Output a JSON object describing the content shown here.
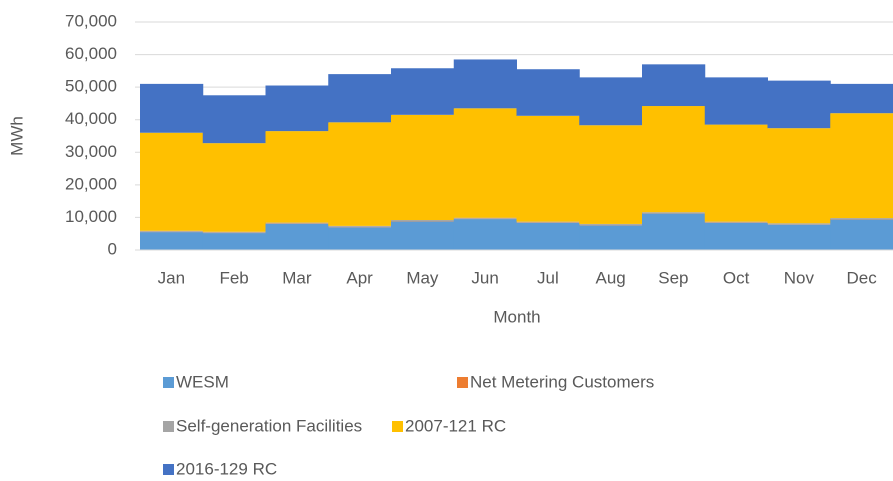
{
  "chart_data": {
    "type": "stacked_area",
    "y_label": "MWh",
    "x_label": "Month",
    "categories": [
      "Jan",
      "Feb",
      "Mar",
      "Apr",
      "May",
      "Jun",
      "Jul",
      "Aug",
      "Sep",
      "Oct",
      "Nov",
      "Dec"
    ],
    "series": [
      {
        "name": "WESM",
        "color": "#5b9bd5",
        "values": [
          5500,
          5200,
          8000,
          7000,
          8800,
          9500,
          8300,
          7600,
          11200,
          8300,
          7800,
          9400
        ]
      },
      {
        "name": "Net Metering Customers",
        "color": "#ed7d31",
        "values": [
          100,
          100,
          100,
          100,
          100,
          100,
          100,
          100,
          100,
          100,
          100,
          100
        ]
      },
      {
        "name": "Self-generation Facilities",
        "color": "#a5a5a5",
        "values": [
          300,
          300,
          300,
          300,
          300,
          300,
          300,
          300,
          300,
          300,
          300,
          300
        ]
      },
      {
        "name": "2007-121 RC",
        "color": "#ffc000",
        "values": [
          30100,
          27200,
          28100,
          31800,
          32300,
          33600,
          32500,
          30300,
          32600,
          29800,
          29200,
          32200
        ]
      },
      {
        "name": "2016-129 RC",
        "color": "#4472c4",
        "values": [
          15000,
          14700,
          14000,
          14800,
          14300,
          15000,
          14300,
          14700,
          12800,
          14500,
          14600,
          9000
        ]
      }
    ],
    "ylim": [
      0,
      70000
    ],
    "yticks": [
      0,
      {
        "value": 10000,
        "label": "10,000"
      },
      {
        "value": 20000,
        "label": "20,000"
      },
      {
        "value": 30000,
        "label": "30,000"
      },
      {
        "value": 40000,
        "label": "40,000"
      },
      {
        "value": 50000,
        "label": "50,000"
      },
      {
        "value": 60000,
        "label": "60,000"
      },
      {
        "value": 70000,
        "label": "70,000"
      }
    ],
    "grid": true,
    "legend": "bottom"
  }
}
